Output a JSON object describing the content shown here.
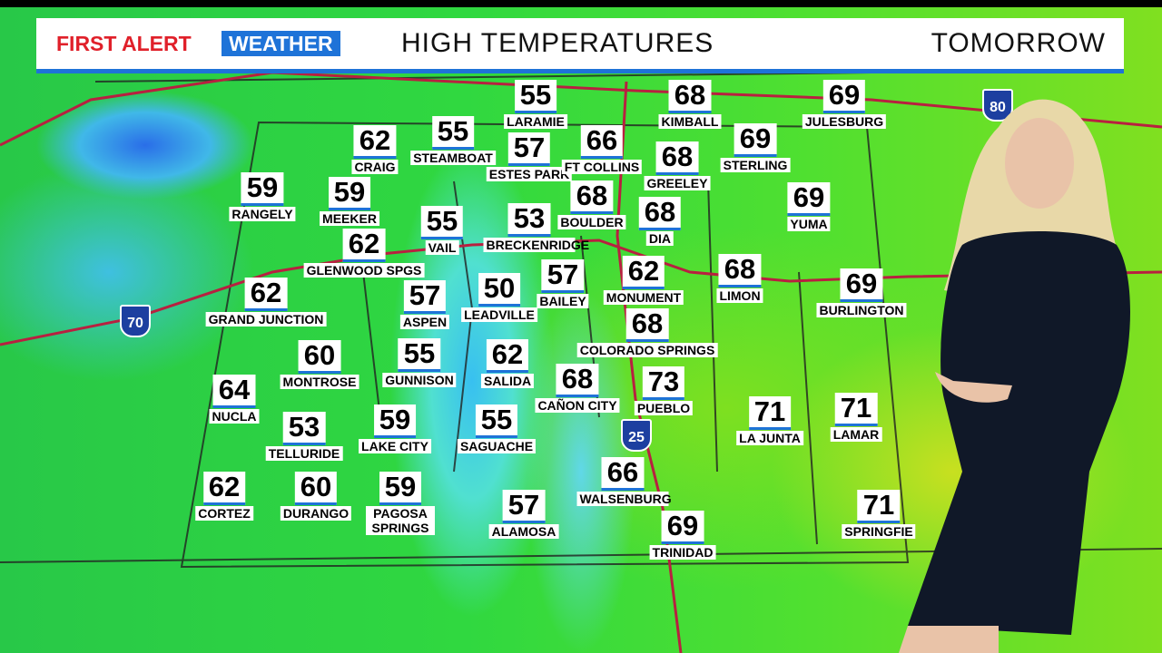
{
  "header": {
    "brand_first": "FIRST ALERT",
    "brand_second": "WEATHER",
    "title": "HIGH TEMPERATURES",
    "period": "TOMORROW"
  },
  "highways": [
    "70",
    "25",
    "80"
  ],
  "cities": [
    {
      "name": "LARAMIE",
      "temp": 55
    },
    {
      "name": "KIMBALL",
      "temp": 68
    },
    {
      "name": "JULESBURG",
      "temp": 69
    },
    {
      "name": "CRAIG",
      "temp": 62
    },
    {
      "name": "STEAMBOAT",
      "temp": 55
    },
    {
      "name": "ESTES PARK",
      "temp": 57
    },
    {
      "name": "FT COLLINS",
      "temp": 66
    },
    {
      "name": "GREELEY",
      "temp": 68
    },
    {
      "name": "STERLING",
      "temp": 69
    },
    {
      "name": "RANGELY",
      "temp": 59
    },
    {
      "name": "MEEKER",
      "temp": 59
    },
    {
      "name": "VAIL",
      "temp": 55
    },
    {
      "name": "BRECKENRIDGE",
      "temp": 53
    },
    {
      "name": "BOULDER",
      "temp": 68
    },
    {
      "name": "DIA",
      "temp": 68
    },
    {
      "name": "YUMA",
      "temp": 69
    },
    {
      "name": "GLENWOOD SPGS",
      "temp": 62
    },
    {
      "name": "GRAND JUNCTION",
      "temp": 62
    },
    {
      "name": "ASPEN",
      "temp": 57
    },
    {
      "name": "LEADVILLE",
      "temp": 50
    },
    {
      "name": "BAILEY",
      "temp": 57
    },
    {
      "name": "MONUMENT",
      "temp": 62
    },
    {
      "name": "LIMON",
      "temp": 68
    },
    {
      "name": "BURLINGTON",
      "temp": 69
    },
    {
      "name": "COLORADO SPRINGS",
      "temp": 68
    },
    {
      "name": "MONTROSE",
      "temp": 60
    },
    {
      "name": "GUNNISON",
      "temp": 55
    },
    {
      "name": "SALIDA",
      "temp": 62
    },
    {
      "name": "CAÑON CITY",
      "temp": 68
    },
    {
      "name": "PUEBLO",
      "temp": 73
    },
    {
      "name": "LA JUNTA",
      "temp": 71
    },
    {
      "name": "LAMAR",
      "temp": 71
    },
    {
      "name": "NUCLA",
      "temp": 64
    },
    {
      "name": "TELLURIDE",
      "temp": 53
    },
    {
      "name": "LAKE CITY",
      "temp": 59
    },
    {
      "name": "SAGUACHE",
      "temp": 55
    },
    {
      "name": "WALSENBURG",
      "temp": 66
    },
    {
      "name": "CORTEZ",
      "temp": 62
    },
    {
      "name": "DURANGO",
      "temp": 60
    },
    {
      "name": "PAGOSA SPRINGS",
      "temp": 59
    },
    {
      "name": "ALAMOSA",
      "temp": 57
    },
    {
      "name": "TRINIDAD",
      "temp": 69
    },
    {
      "name": "SPRINGFIE",
      "temp": 71
    }
  ]
}
